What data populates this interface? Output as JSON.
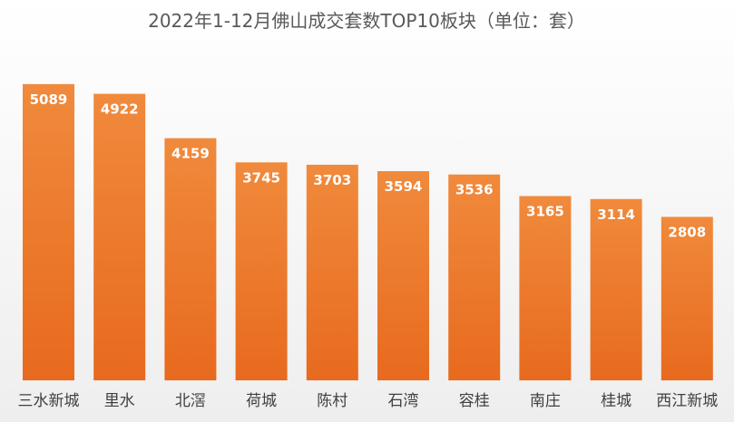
{
  "chart_data": {
    "type": "bar",
    "title": "2022年1-12月佛山成交套数TOP10板块（单位：套）",
    "categories": [
      "三水新城",
      "里水",
      "北滘",
      "荷城",
      "陈村",
      "石湾",
      "容桂",
      "南庄",
      "桂城",
      "西江新城"
    ],
    "values": [
      5089,
      4922,
      4159,
      3745,
      3703,
      3594,
      3536,
      3165,
      3114,
      2808
    ],
    "xlabel": "",
    "ylabel": "",
    "ylim": [
      0,
      5600
    ],
    "grid": false,
    "legend": "none",
    "data_labels": true
  },
  "colors": {
    "bar_top": "#F08A3C",
    "bar_bottom": "#E86A1E",
    "background_top": "#ffffff",
    "background_bottom": "#eeeeee"
  }
}
